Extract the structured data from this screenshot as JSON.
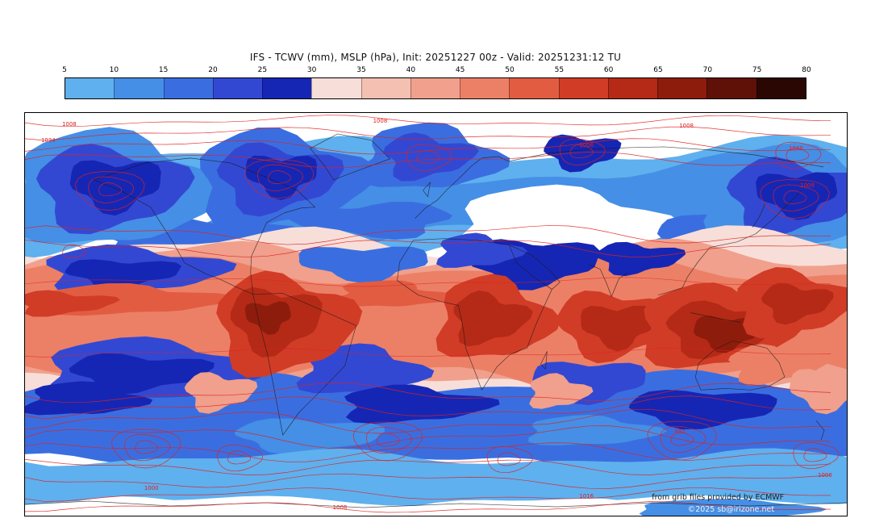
{
  "title": "IFS - TCWV (mm), MSLP (hPa), Init: 20251227 00z - Valid: 20251231:12 TU",
  "colorbar": {
    "unit": "mm",
    "ticks": [
      "5",
      "10",
      "15",
      "20",
      "25",
      "30",
      "35",
      "40",
      "45",
      "50",
      "55",
      "60",
      "65",
      "70",
      "75",
      "80"
    ],
    "colors": [
      "#5fb0ee",
      "#458fe6",
      "#3a6ee0",
      "#3348d2",
      "#1626b4",
      "#f8ded8",
      "#f4c0b2",
      "#f0a08c",
      "#ec8066",
      "#e25c42",
      "#d13c26",
      "#b42a16",
      "#8e1c0d",
      "#5f1107",
      "#2b0703"
    ]
  },
  "map": {
    "contour_color": "#e02020",
    "pressure_labels": [
      "1008",
      "1024",
      "1008",
      "1006",
      "1008",
      "1040",
      "1009",
      "992",
      "1000",
      "1008",
      "1016",
      "1000"
    ],
    "attribution_line1": "from grib files provided by ECMWF",
    "attribution_line2": "©2025 sb@irizone.net"
  },
  "chart_data": {
    "type": "heatmap",
    "title": "IFS - TCWV (mm), MSLP (hPa), Init: 20251227 00z - Valid: 20251231:12 TU",
    "field": "Total Column Water Vapour (mm), global map",
    "overlay": "Mean Sea Level Pressure (hPa) red contour lines",
    "colorbar_ticks": [
      5,
      10,
      15,
      20,
      25,
      30,
      35,
      40,
      45,
      50,
      55,
      60,
      65,
      70,
      75,
      80
    ],
    "colorbar_range": [
      5,
      80
    ],
    "visible_pressure_values": [
      992,
      1000,
      1006,
      1008,
      1009,
      1016,
      1024,
      1040
    ]
  }
}
